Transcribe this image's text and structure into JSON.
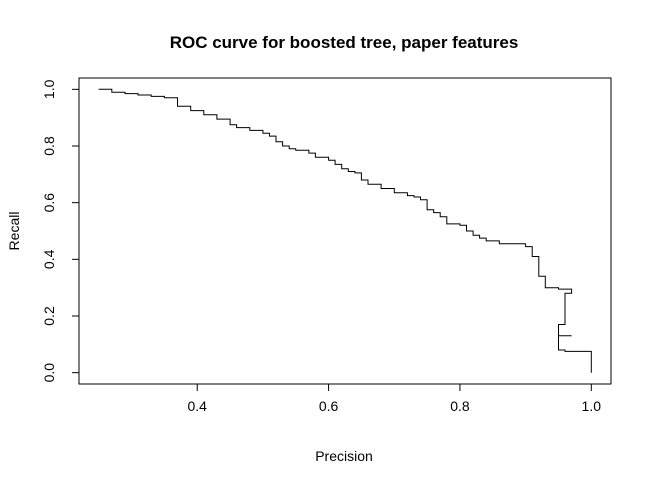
{
  "chart_data": {
    "type": "line",
    "title": "ROC curve for boosted tree, paper features",
    "xlabel": "Precision",
    "ylabel": "Recall",
    "xlim": [
      0.22,
      1.03
    ],
    "ylim": [
      -0.04,
      1.04
    ],
    "x_ticks": [
      0.4,
      0.6,
      0.8,
      1.0
    ],
    "x_tick_labels": [
      "0.4",
      "0.6",
      "0.8",
      "1.0"
    ],
    "y_ticks": [
      0.0,
      0.2,
      0.4,
      0.6,
      0.8,
      1.0
    ],
    "y_tick_labels": [
      "0.0",
      "0.2",
      "0.4",
      "0.6",
      "0.8",
      "1.0"
    ],
    "grid": false,
    "legend": "none",
    "color": "#000000",
    "series": [
      {
        "x": [
          0.25,
          0.27,
          0.29,
          0.31,
          0.33,
          0.35,
          0.37,
          0.37,
          0.39,
          0.41,
          0.43,
          0.45,
          0.46,
          0.48,
          0.5,
          0.51,
          0.52,
          0.53,
          0.54,
          0.55,
          0.57,
          0.58,
          0.6,
          0.61,
          0.62,
          0.63,
          0.64,
          0.65,
          0.65,
          0.66,
          0.68,
          0.7,
          0.72,
          0.73,
          0.74,
          0.75,
          0.76,
          0.77,
          0.78,
          0.8,
          0.81,
          0.82,
          0.83,
          0.84,
          0.86,
          0.88,
          0.9,
          0.91,
          0.91,
          0.92,
          0.92,
          0.93,
          0.93,
          0.95,
          0.97,
          0.96,
          0.95,
          0.95,
          0.97,
          0.95,
          0.96,
          1.0,
          1.0
        ],
        "y": [
          1.0,
          0.99,
          0.985,
          0.98,
          0.975,
          0.97,
          0.96,
          0.94,
          0.925,
          0.91,
          0.895,
          0.875,
          0.865,
          0.855,
          0.845,
          0.835,
          0.815,
          0.8,
          0.79,
          0.785,
          0.775,
          0.76,
          0.75,
          0.735,
          0.72,
          0.71,
          0.705,
          0.7,
          0.68,
          0.665,
          0.65,
          0.635,
          0.625,
          0.62,
          0.61,
          0.575,
          0.565,
          0.55,
          0.525,
          0.52,
          0.5,
          0.485,
          0.475,
          0.465,
          0.455,
          0.455,
          0.445,
          0.43,
          0.41,
          0.37,
          0.34,
          0.31,
          0.3,
          0.295,
          0.28,
          0.17,
          0.13,
          0.13,
          0.13,
          0.08,
          0.075,
          0.075,
          0.0
        ]
      }
    ]
  }
}
